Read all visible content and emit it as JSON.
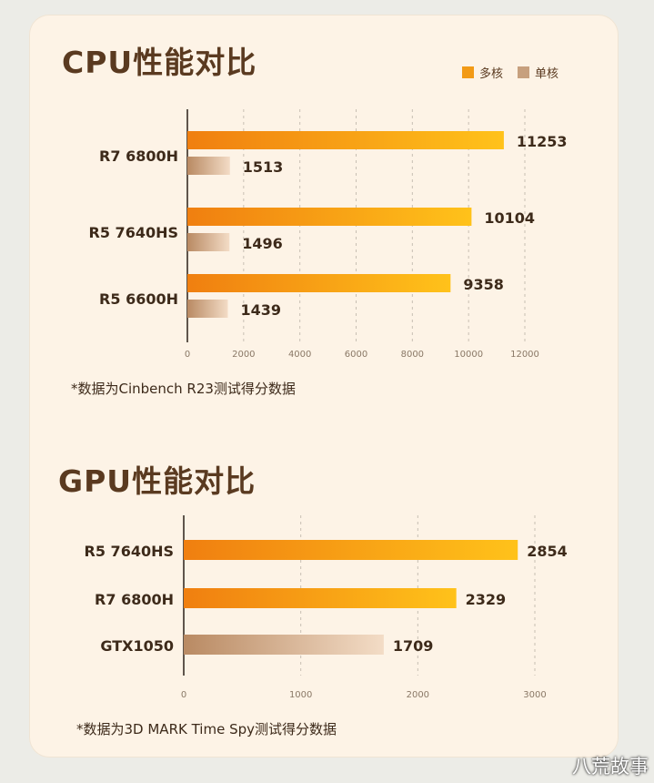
{
  "cpu": {
    "title": "CPU性能对比",
    "legend": [
      {
        "name": "多核",
        "color": "#f29a16"
      },
      {
        "name": "单核",
        "color": "#c7a07e"
      }
    ],
    "note": "*数据为Cinbench R23测试得分数据"
  },
  "gpu": {
    "title": "GPU性能对比",
    "note": "*数据为3D MARK Time Spy测试得分数据"
  },
  "watermark": "八荒故事",
  "chart_data": [
    {
      "type": "bar",
      "orientation": "horizontal",
      "title": "CPU性能对比",
      "categories": [
        "R7 6800H",
        "R5 7640HS",
        "R5 6600H"
      ],
      "series": [
        {
          "name": "多核",
          "values": [
            11253,
            10104,
            9358
          ]
        },
        {
          "name": "单核",
          "values": [
            1513,
            1496,
            1439
          ]
        }
      ],
      "xlim": [
        0,
        12000
      ],
      "xticks": [
        0,
        2000,
        4000,
        6000,
        8000,
        10000,
        12000
      ],
      "grid": true,
      "legend": "top-right"
    },
    {
      "type": "bar",
      "orientation": "horizontal",
      "title": "GPU性能对比",
      "categories": [
        "R5 7640HS",
        "R7 6800H",
        "GTX1050"
      ],
      "values": [
        2854,
        2329,
        1709
      ],
      "xlim": [
        0,
        3000
      ],
      "xticks": [
        0,
        1000,
        2000,
        3000
      ],
      "grid": true
    }
  ]
}
